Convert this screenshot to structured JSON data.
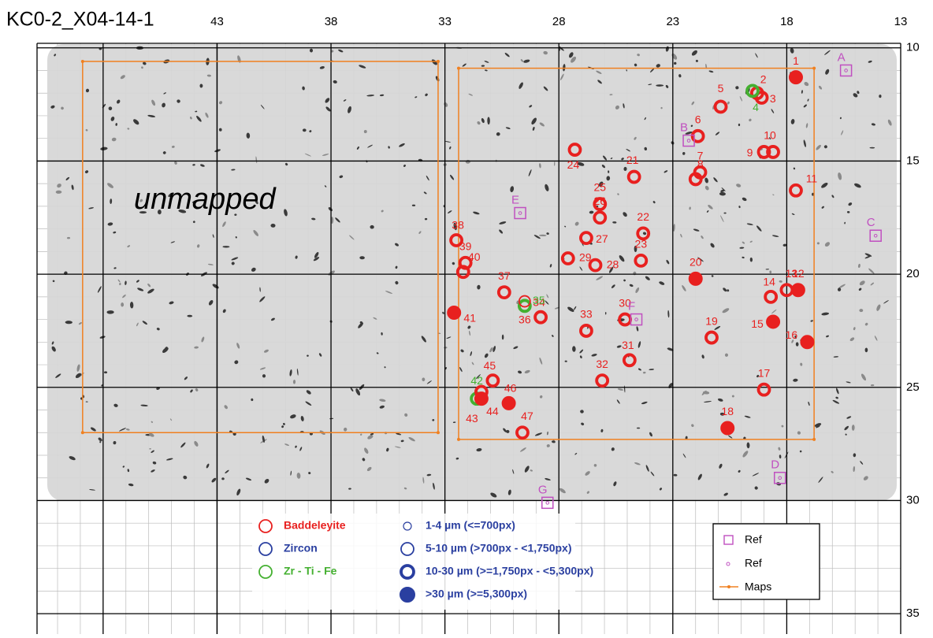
{
  "header": {
    "title": "KC0-2_X04-14-1"
  },
  "map": {
    "xlim": [
      50.9,
      13
    ],
    "ylim": [
      9.8,
      35.9
    ],
    "xticks": [
      43,
      38,
      33,
      28,
      23,
      18,
      13
    ],
    "yticks": [
      10,
      15,
      20,
      25,
      30,
      35
    ],
    "unmapped_label": "unmapped",
    "maps": [
      {
        "x": [
          48.9,
          33.3
        ],
        "y": [
          10.6,
          27.0
        ]
      },
      {
        "x": [
          32.4,
          16.8
        ],
        "y": [
          10.9,
          27.3
        ]
      }
    ],
    "grains": [
      {
        "label": "1",
        "x": 17.6,
        "y": 11.3,
        "mineral": 0,
        "size": 3
      },
      {
        "label": "2",
        "x": 19.1,
        "y": 12.2,
        "mineral": 0,
        "size": 2
      },
      {
        "label": "3",
        "x": 19.3,
        "y": 12.0,
        "mineral": 0,
        "size": 2
      },
      {
        "label": "4",
        "x": 19.5,
        "y": 11.9,
        "mineral": 2,
        "size": 2
      },
      {
        "label": "5",
        "x": 20.9,
        "y": 12.6,
        "mineral": 0,
        "size": 2
      },
      {
        "label": "6",
        "x": 21.9,
        "y": 13.9,
        "mineral": 0,
        "size": 2
      },
      {
        "label": "7",
        "x": 21.8,
        "y": 15.5,
        "mineral": 0,
        "size": 2
      },
      {
        "label": "8",
        "x": 22.0,
        "y": 15.8,
        "mineral": 0,
        "size": 2
      },
      {
        "label": "9",
        "x": 19.0,
        "y": 14.6,
        "mineral": 0,
        "size": 2
      },
      {
        "label": "10",
        "x": 18.6,
        "y": 14.6,
        "mineral": 0,
        "size": 2
      },
      {
        "label": "11",
        "x": 17.6,
        "y": 16.3,
        "mineral": 0,
        "size": 2
      },
      {
        "label": "12",
        "x": 17.5,
        "y": 20.7,
        "mineral": 0,
        "size": 3
      },
      {
        "label": "13",
        "x": 18.0,
        "y": 20.7,
        "mineral": 0,
        "size": 2
      },
      {
        "label": "14",
        "x": 18.7,
        "y": 21.0,
        "mineral": 0,
        "size": 2
      },
      {
        "label": "15",
        "x": 18.6,
        "y": 22.1,
        "mineral": 0,
        "size": 3
      },
      {
        "label": "16",
        "x": 17.1,
        "y": 23.0,
        "mineral": 0,
        "size": 3
      },
      {
        "label": "17",
        "x": 19.0,
        "y": 25.1,
        "mineral": 0,
        "size": 2
      },
      {
        "label": "18",
        "x": 20.6,
        "y": 26.8,
        "mineral": 0,
        "size": 3
      },
      {
        "label": "19",
        "x": 21.3,
        "y": 22.8,
        "mineral": 0,
        "size": 2
      },
      {
        "label": "20",
        "x": 22.0,
        "y": 20.2,
        "mineral": 0,
        "size": 3
      },
      {
        "label": "21",
        "x": 24.7,
        "y": 15.7,
        "mineral": 0,
        "size": 2
      },
      {
        "label": "22",
        "x": 24.3,
        "y": 18.2,
        "mineral": 0,
        "size": 2
      },
      {
        "label": "23",
        "x": 24.4,
        "y": 19.4,
        "mineral": 0,
        "size": 2
      },
      {
        "label": "24",
        "x": 27.3,
        "y": 14.5,
        "mineral": 0,
        "size": 2
      },
      {
        "label": "25",
        "x": 26.2,
        "y": 16.9,
        "mineral": 0,
        "size": 2
      },
      {
        "label": "26",
        "x": 26.2,
        "y": 17.5,
        "mineral": 0,
        "size": 2
      },
      {
        "label": "27",
        "x": 26.8,
        "y": 18.4,
        "mineral": 0,
        "size": 2
      },
      {
        "label": "28",
        "x": 26.4,
        "y": 19.6,
        "mineral": 0,
        "size": 2
      },
      {
        "label": "29",
        "x": 27.6,
        "y": 19.3,
        "mineral": 0,
        "size": 2
      },
      {
        "label": "30",
        "x": 25.1,
        "y": 22.0,
        "mineral": 0,
        "size": 2
      },
      {
        "label": "31",
        "x": 24.9,
        "y": 23.8,
        "mineral": 0,
        "size": 2
      },
      {
        "label": "32",
        "x": 26.1,
        "y": 24.7,
        "mineral": 0,
        "size": 2
      },
      {
        "label": "33",
        "x": 26.8,
        "y": 22.5,
        "mineral": 0,
        "size": 2
      },
      {
        "label": "34",
        "x": 28.8,
        "y": 21.9,
        "mineral": 0,
        "size": 2
      },
      {
        "label": "35",
        "x": 29.5,
        "y": 21.4,
        "mineral": 2,
        "size": 2
      },
      {
        "label": "36",
        "x": 29.5,
        "y": 21.2,
        "mineral": 0,
        "size": 1
      },
      {
        "label": "37",
        "x": 30.4,
        "y": 20.8,
        "mineral": 0,
        "size": 2
      },
      {
        "label": "38",
        "x": 32.5,
        "y": 18.5,
        "mineral": 0,
        "size": 2
      },
      {
        "label": "39",
        "x": 32.1,
        "y": 19.5,
        "mineral": 0,
        "size": 2
      },
      {
        "label": "40",
        "x": 32.2,
        "y": 19.9,
        "mineral": 0,
        "size": 2
      },
      {
        "label": "41",
        "x": 32.6,
        "y": 21.7,
        "mineral": 0,
        "size": 3
      },
      {
        "label": "42",
        "x": 31.6,
        "y": 25.5,
        "mineral": 2,
        "size": 2
      },
      {
        "label": "43",
        "x": 31.4,
        "y": 25.5,
        "mineral": 0,
        "size": 3
      },
      {
        "label": "44",
        "x": 31.4,
        "y": 25.2,
        "mineral": 0,
        "size": 2
      },
      {
        "label": "45",
        "x": 30.9,
        "y": 24.7,
        "mineral": 0,
        "size": 2
      },
      {
        "label": "46",
        "x": 30.2,
        "y": 25.7,
        "mineral": 0,
        "size": 3
      },
      {
        "label": "47",
        "x": 29.6,
        "y": 27.0,
        "mineral": 0,
        "size": 2
      }
    ],
    "refs": [
      {
        "label": "A",
        "x": 15.4,
        "y": 11.0
      },
      {
        "label": "B",
        "x": 22.3,
        "y": 14.1
      },
      {
        "label": "C",
        "x": 14.1,
        "y": 18.3
      },
      {
        "label": "D",
        "x": 18.3,
        "y": 29.0
      },
      {
        "label": "E",
        "x": 29.7,
        "y": 17.3
      },
      {
        "label": "F",
        "x": 24.6,
        "y": 22.0
      },
      {
        "label": "G",
        "x": 28.5,
        "y": 30.1
      }
    ]
  },
  "legend": {
    "minerals": [
      {
        "name": "Baddeleyite",
        "color": "#e8201f"
      },
      {
        "name": "Zircon",
        "color": "#2a3fa0"
      },
      {
        "name": "Zr - Ti - Fe",
        "color": "#44b030"
      }
    ],
    "size_color": "#2a3fa0",
    "sizes": [
      "1-4 µm (<=700px)",
      "5-10 µm (>700px - <1,750px)",
      "10-30 µm (>=1,750px - <5,300px)",
      ">30 µm (>=5,300px)"
    ],
    "ref_color": "#c050c0",
    "maps_color": "#f08020",
    "box": [
      "Ref",
      "Ref",
      "Maps"
    ]
  }
}
